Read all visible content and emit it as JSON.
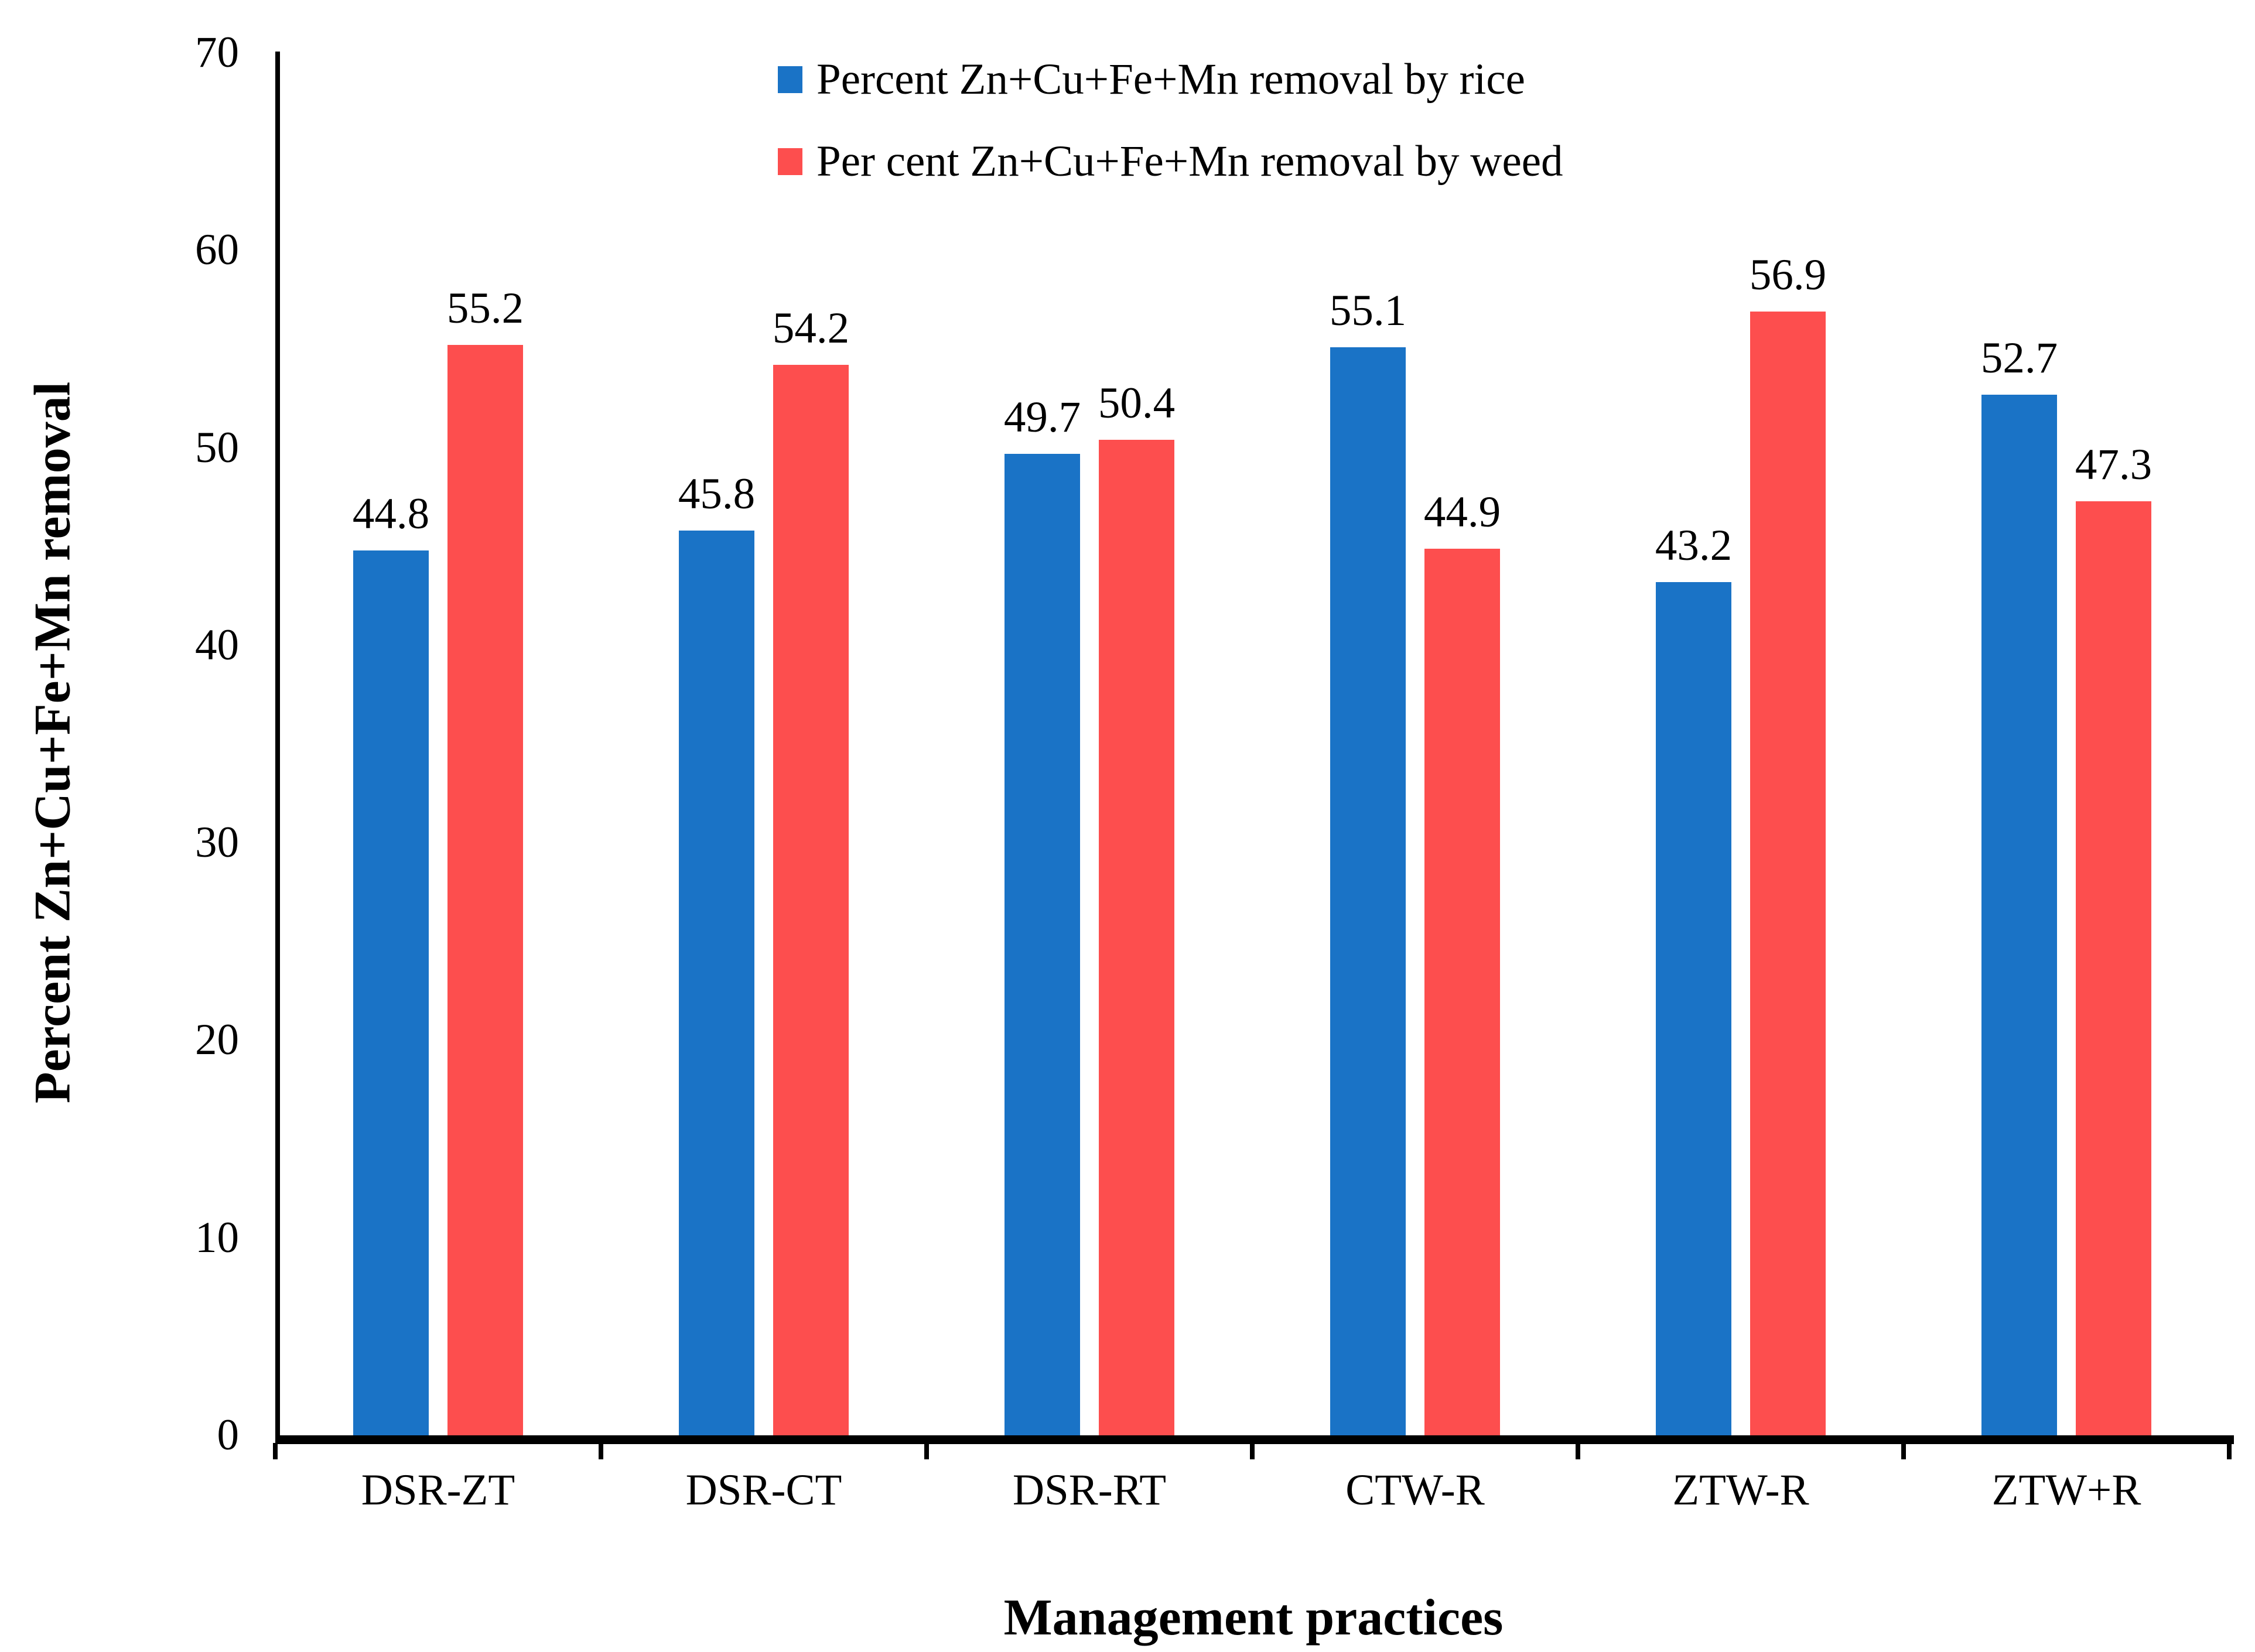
{
  "chart_data": {
    "type": "bar",
    "title": "",
    "xlabel": "Management practices",
    "ylabel": "Percent Zn+Cu+Fe+Mn removal",
    "categories": [
      "DSR-ZT",
      "DSR-CT",
      "DSR-RT",
      "CTW-R",
      "ZTW-R",
      "ZTW+R"
    ],
    "series": [
      {
        "name": "Percent Zn+Cu+Fe+Mn removal by rice",
        "color": "#1A73C6",
        "values": [
          44.8,
          45.8,
          49.7,
          55.1,
          43.2,
          52.7
        ]
      },
      {
        "name": "Per cent Zn+Cu+Fe+Mn removal by weed",
        "color": "#FD4E4E",
        "values": [
          55.2,
          54.2,
          50.4,
          44.9,
          56.9,
          47.3
        ]
      }
    ],
    "data_labels": "on",
    "ylim": [
      0,
      70
    ],
    "yticks": [
      0,
      10,
      20,
      30,
      40,
      50,
      60,
      70
    ],
    "grid": "off",
    "legend_position": "top-center",
    "axis_color": "#000000",
    "background_color": "#ffffff"
  }
}
